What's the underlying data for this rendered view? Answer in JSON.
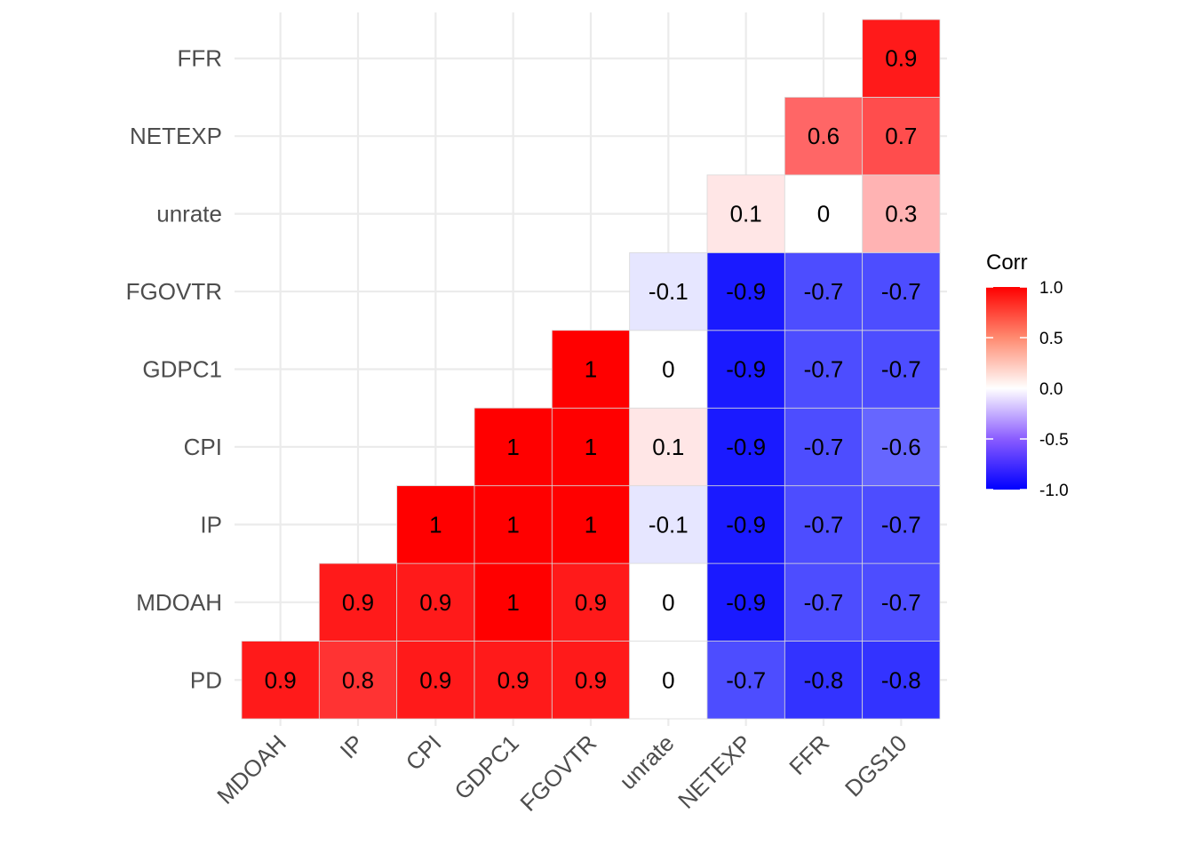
{
  "chart_data": {
    "type": "heatmap",
    "title": "",
    "xlabel": "",
    "ylabel": "",
    "x_categories": [
      "MDOAH",
      "IP",
      "CPI",
      "GDPC1",
      "FGOVTR",
      "unrate",
      "NETEXP",
      "FFR",
      "DGS10"
    ],
    "y_categories": [
      "PD",
      "MDOAH",
      "IP",
      "CPI",
      "GDPC1",
      "FGOVTR",
      "unrate",
      "NETEXP",
      "FFR"
    ],
    "cells": [
      {
        "x": "MDOAH",
        "y": "PD",
        "value": 0.9
      },
      {
        "x": "IP",
        "y": "PD",
        "value": 0.8
      },
      {
        "x": "CPI",
        "y": "PD",
        "value": 0.9
      },
      {
        "x": "GDPC1",
        "y": "PD",
        "value": 0.9
      },
      {
        "x": "FGOVTR",
        "y": "PD",
        "value": 0.9
      },
      {
        "x": "unrate",
        "y": "PD",
        "value": 0
      },
      {
        "x": "NETEXP",
        "y": "PD",
        "value": -0.7
      },
      {
        "x": "FFR",
        "y": "PD",
        "value": -0.8
      },
      {
        "x": "DGS10",
        "y": "PD",
        "value": -0.8
      },
      {
        "x": "IP",
        "y": "MDOAH",
        "value": 0.9
      },
      {
        "x": "CPI",
        "y": "MDOAH",
        "value": 0.9
      },
      {
        "x": "GDPC1",
        "y": "MDOAH",
        "value": 1
      },
      {
        "x": "FGOVTR",
        "y": "MDOAH",
        "value": 0.9
      },
      {
        "x": "unrate",
        "y": "MDOAH",
        "value": 0
      },
      {
        "x": "NETEXP",
        "y": "MDOAH",
        "value": -0.9
      },
      {
        "x": "FFR",
        "y": "MDOAH",
        "value": -0.7
      },
      {
        "x": "DGS10",
        "y": "MDOAH",
        "value": -0.7
      },
      {
        "x": "CPI",
        "y": "IP",
        "value": 1
      },
      {
        "x": "GDPC1",
        "y": "IP",
        "value": 1
      },
      {
        "x": "FGOVTR",
        "y": "IP",
        "value": 1
      },
      {
        "x": "unrate",
        "y": "IP",
        "value": -0.1
      },
      {
        "x": "NETEXP",
        "y": "IP",
        "value": -0.9
      },
      {
        "x": "FFR",
        "y": "IP",
        "value": -0.7
      },
      {
        "x": "DGS10",
        "y": "IP",
        "value": -0.7
      },
      {
        "x": "GDPC1",
        "y": "CPI",
        "value": 1
      },
      {
        "x": "FGOVTR",
        "y": "CPI",
        "value": 1
      },
      {
        "x": "unrate",
        "y": "CPI",
        "value": 0.1
      },
      {
        "x": "NETEXP",
        "y": "CPI",
        "value": -0.9
      },
      {
        "x": "FFR",
        "y": "CPI",
        "value": -0.7
      },
      {
        "x": "DGS10",
        "y": "CPI",
        "value": -0.6
      },
      {
        "x": "FGOVTR",
        "y": "GDPC1",
        "value": 1
      },
      {
        "x": "unrate",
        "y": "GDPC1",
        "value": 0
      },
      {
        "x": "NETEXP",
        "y": "GDPC1",
        "value": -0.9
      },
      {
        "x": "FFR",
        "y": "GDPC1",
        "value": -0.7
      },
      {
        "x": "DGS10",
        "y": "GDPC1",
        "value": -0.7
      },
      {
        "x": "unrate",
        "y": "FGOVTR",
        "value": -0.1
      },
      {
        "x": "NETEXP",
        "y": "FGOVTR",
        "value": -0.9
      },
      {
        "x": "FFR",
        "y": "FGOVTR",
        "value": -0.7
      },
      {
        "x": "DGS10",
        "y": "FGOVTR",
        "value": -0.7
      },
      {
        "x": "NETEXP",
        "y": "unrate",
        "value": 0.1
      },
      {
        "x": "FFR",
        "y": "unrate",
        "value": 0
      },
      {
        "x": "DGS10",
        "y": "unrate",
        "value": 0.3
      },
      {
        "x": "FFR",
        "y": "NETEXP",
        "value": 0.6
      },
      {
        "x": "DGS10",
        "y": "NETEXP",
        "value": 0.7
      },
      {
        "x": "DGS10",
        "y": "FFR",
        "value": 0.9
      }
    ],
    "color_scale": {
      "low": "#0000ff",
      "mid": "#ffffff",
      "high": "#ff0000",
      "limits": [
        -1,
        1
      ]
    },
    "grid": true,
    "legend": {
      "title": "Corr",
      "position": "right",
      "ticks": [
        "1.0",
        "0.5",
        "0.0",
        "-0.5",
        "-1.0"
      ],
      "tick_values": [
        1,
        0.5,
        0,
        -0.5,
        -1
      ]
    }
  }
}
